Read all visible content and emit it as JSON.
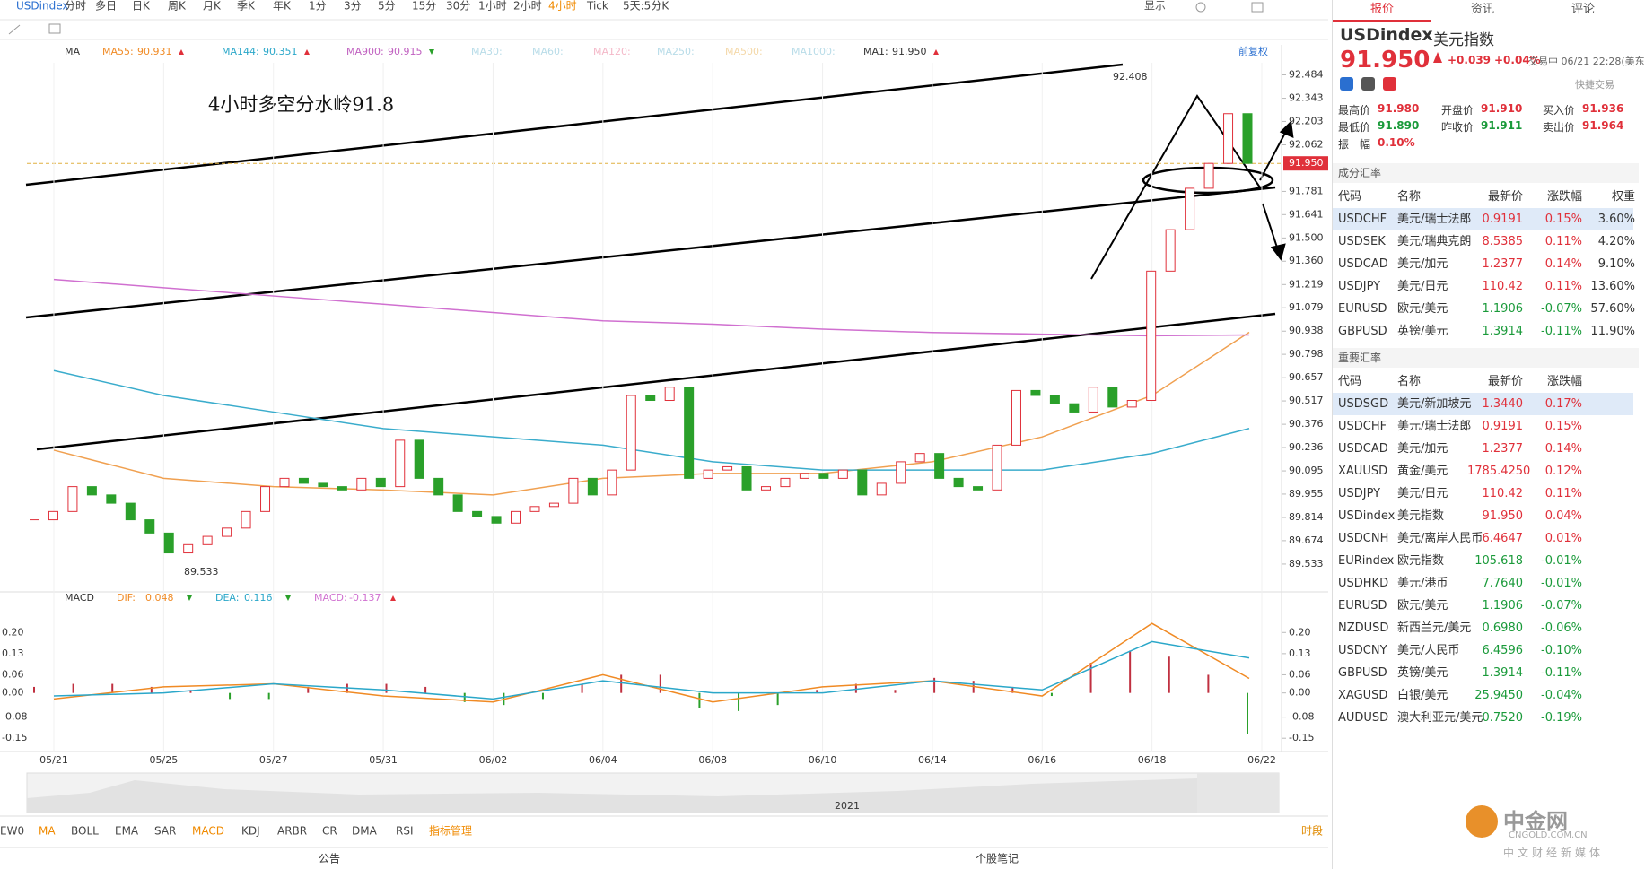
{
  "toolbar": {
    "symbol": "USDindex",
    "periods": [
      "分时",
      "多日",
      "日K",
      "周K",
      "月K",
      "季K",
      "年K",
      "1分",
      "3分",
      "5分",
      "15分",
      "30分",
      "1小时",
      "2小时",
      "4小时",
      "Tick",
      "5天:5分K"
    ],
    "active": "4小时",
    "display": "显示"
  },
  "chart": {
    "type": "candlestick",
    "indicator": "MA",
    "annotation": "4小时多空分水岭91.8",
    "high_label": "92.408",
    "low_label": "89.533",
    "restore": "前复权",
    "legend": [
      {
        "label": "MA55:",
        "value": "90.931",
        "color": "#f08a24",
        "trend": "up"
      },
      {
        "label": "MA144:",
        "value": "90.351",
        "color": "#2aa7c9",
        "trend": "up"
      },
      {
        "label": "MA900:",
        "value": "90.915",
        "color": "#c060c0",
        "trend": "down"
      },
      {
        "label": "MA30:",
        "color": "#b8dce8"
      },
      {
        "label": "MA60:",
        "color": "#b8dce8"
      },
      {
        "label": "MA120:",
        "color": "#f4b8c8"
      },
      {
        "label": "MA250:",
        "color": "#b8dce8"
      },
      {
        "label": "MA500:",
        "color": "#f4d8a8"
      },
      {
        "label": "MA1000:",
        "color": "#b8dce8"
      },
      {
        "label": "MA1:",
        "value": "91.950",
        "color": "#333333",
        "trend": "up"
      }
    ],
    "ylim": [
      89.392,
      92.557
    ],
    "yticks": [
      92.484,
      92.343,
      92.203,
      92.062,
      91.781,
      91.641,
      {
        "value": 91.5,
        "label": "91.500"
      },
      {
        "value": 91.36,
        "label": "91.360"
      },
      91.219,
      91.079,
      90.938,
      90.798,
      90.657,
      90.517,
      90.376,
      90.236,
      90.095,
      89.955,
      89.814,
      89.674,
      89.533
    ],
    "last": {
      "value": 91.95,
      "label": "91.950"
    },
    "xticks": [
      "05/21",
      "05/25",
      "05/27",
      "05/31",
      "06/02",
      "06/04",
      "06/08",
      "06/10",
      "06/14",
      "06/16",
      "06/18",
      "06/22"
    ],
    "closes": [
      89.8,
      89.85,
      90.0,
      89.95,
      89.9,
      89.8,
      89.72,
      89.6,
      89.65,
      89.7,
      89.75,
      89.85,
      90.0,
      90.05,
      90.02,
      90.0,
      89.98,
      90.05,
      90.0,
      90.28,
      90.05,
      89.95,
      89.85,
      89.82,
      89.78,
      89.85,
      89.88,
      89.9,
      90.05,
      89.95,
      90.1,
      90.55,
      90.52,
      90.6,
      90.05,
      90.1,
      90.12,
      89.98,
      90.0,
      90.05,
      90.08,
      90.05,
      90.1,
      89.95,
      90.02,
      90.15,
      90.2,
      90.05,
      90.0,
      89.98,
      90.25,
      90.58,
      90.55,
      90.5,
      90.45,
      90.6,
      90.48,
      90.52,
      91.3,
      91.55,
      91.8,
      91.95,
      92.25,
      91.95
    ],
    "ma_lines": [
      {
        "color": "#f0a050",
        "values": [
          90.22,
          90.05,
          90.0,
          89.98,
          89.95,
          90.05,
          90.08,
          90.08,
          90.15,
          90.3,
          90.55,
          90.931
        ]
      },
      {
        "color": "#3aaccc",
        "values": [
          90.7,
          90.55,
          90.45,
          90.35,
          90.3,
          90.25,
          90.15,
          90.1,
          90.1,
          90.1,
          90.2,
          90.351
        ]
      },
      {
        "color": "#d070d0",
        "values": [
          91.25,
          91.2,
          91.15,
          91.1,
          91.05,
          91.0,
          90.98,
          90.95,
          90.93,
          90.92,
          90.91,
          90.915
        ]
      }
    ],
    "year": "2021"
  },
  "macd": {
    "type": "bar",
    "name": "MACD",
    "legend": [
      {
        "label": "DIF:",
        "value": "0.048",
        "color": "#f08a24",
        "trend": "down"
      },
      {
        "label": "DEA:",
        "value": "0.116",
        "color": "#2aa7c9",
        "trend": "down"
      },
      {
        "label": "MACD:",
        "value": "-0.137",
        "color": "#d070d0",
        "trend": "up"
      }
    ],
    "ylim": [
      -0.185,
      0.278
    ],
    "yticks": [
      {
        "value": 0.2,
        "label": "0.20"
      },
      0.13,
      0.06,
      {
        "value": 0,
        "label": "0.00"
      },
      -0.08,
      -0.15
    ],
    "histogram": [
      0.02,
      0.03,
      0.03,
      0.02,
      0.01,
      -0.02,
      -0.02,
      0.02,
      0.03,
      0.03,
      0.02,
      -0.03,
      -0.04,
      -0.02,
      0.03,
      0.06,
      0.06,
      -0.05,
      -0.06,
      -0.04,
      0.01,
      0.03,
      0.01,
      0.05,
      0.04,
      0.02,
      -0.01,
      0.1,
      0.14,
      0.12,
      0.06,
      -0.137
    ],
    "dif": [
      -0.02,
      0.02,
      0.03,
      -0.01,
      -0.03,
      0.06,
      -0.03,
      0.02,
      0.04,
      -0.01,
      0.23,
      0.048
    ],
    "dea": [
      -0.01,
      0.0,
      0.03,
      0.01,
      -0.02,
      0.04,
      0.0,
      0.0,
      0.04,
      0.01,
      0.17,
      0.116
    ]
  },
  "indicators": {
    "items": [
      "EW0",
      "MA",
      "BOLL",
      "EMA",
      "SAR",
      "MACD",
      "KDJ",
      "ARBR",
      "CR",
      "DMA",
      "RSI",
      "指标管理"
    ],
    "active": [
      "MA",
      "MACD",
      "指标管理"
    ],
    "session": "时段"
  },
  "footer": {
    "left": "公告",
    "right": "个股笔记"
  },
  "quote": {
    "tabs": [
      "报价",
      "资讯",
      "评论"
    ],
    "symbol": "USDindex",
    "name": "美元指数",
    "price": "91.950",
    "change": "+0.039",
    "change_pct": "+0.04%",
    "status": "交易中 06/21 22:28(美东",
    "quick_trade": "快捷交易",
    "stats": [
      {
        "label": "最高价",
        "value": "91.980"
      },
      {
        "label": "开盘价",
        "value": "91.910"
      },
      {
        "label": "买入价",
        "value": "91.936"
      },
      {
        "label": "最低价",
        "value": "91.890"
      },
      {
        "label": "昨收价",
        "value": "91.911"
      },
      {
        "label": "卖出价",
        "value": "91.964"
      },
      {
        "label": "振　幅",
        "value": "0.10%"
      }
    ]
  },
  "components": {
    "title": "成分汇率",
    "headers": [
      "代码",
      "名称",
      "最新价",
      "涨跌幅",
      "权重"
    ],
    "rows": [
      [
        "USDCHF",
        "美元/瑞士法郎",
        "0.9191",
        "0.15%",
        "3.60%"
      ],
      [
        "USDSEK",
        "美元/瑞典克朗",
        "8.5385",
        "0.11%",
        "4.20%"
      ],
      [
        "USDCAD",
        "美元/加元",
        "1.2377",
        "0.14%",
        "9.10%"
      ],
      [
        "USDJPY",
        "美元/日元",
        "110.42",
        "0.11%",
        "13.60%"
      ],
      [
        "EURUSD",
        "欧元/美元",
        "1.1906",
        "-0.07%",
        "57.60%"
      ],
      [
        "GBPUSD",
        "英镑/美元",
        "1.3914",
        "-0.11%",
        "11.90%"
      ]
    ]
  },
  "important": {
    "title": "重要汇率",
    "headers": [
      "代码",
      "名称",
      "最新价",
      "涨跌幅"
    ],
    "rows": [
      [
        "USDSGD",
        "美元/新加坡元",
        "1.3440",
        "0.17%"
      ],
      [
        "USDCHF",
        "美元/瑞士法郎",
        "0.9191",
        "0.15%"
      ],
      [
        "USDCAD",
        "美元/加元",
        "1.2377",
        "0.14%"
      ],
      [
        "XAUUSD",
        "黄金/美元",
        "1785.4250",
        "0.12%"
      ],
      [
        "USDJPY",
        "美元/日元",
        "110.42",
        "0.11%"
      ],
      [
        "USDindex",
        "美元指数",
        "91.950",
        "0.04%"
      ],
      [
        "USDCNH",
        "美元/离岸人民币",
        "6.4647",
        "0.01%"
      ],
      [
        "EURindex",
        "欧元指数",
        "105.618",
        "-0.01%"
      ],
      [
        "USDHKD",
        "美元/港币",
        "7.7640",
        "-0.01%"
      ],
      [
        "EURUSD",
        "欧元/美元",
        "1.1906",
        "-0.07%"
      ],
      [
        "NZDUSD",
        "新西兰元/美元",
        "0.6980",
        "-0.06%"
      ],
      [
        "USDCNY",
        "美元/人民币",
        "6.4596",
        "-0.10%"
      ],
      [
        "GBPUSD",
        "英镑/美元",
        "1.3914",
        "-0.11%"
      ],
      [
        "XAGUSD",
        "白银/美元",
        "25.9450",
        "-0.04%"
      ],
      [
        "AUDUSD",
        "澳大利亚元/美元",
        "0.7520",
        "-0.19%"
      ]
    ]
  },
  "watermark": {
    "brand": "中金网",
    "site": "CNGOLD.COM.CN",
    "slogan": "中文财经新媒体"
  }
}
